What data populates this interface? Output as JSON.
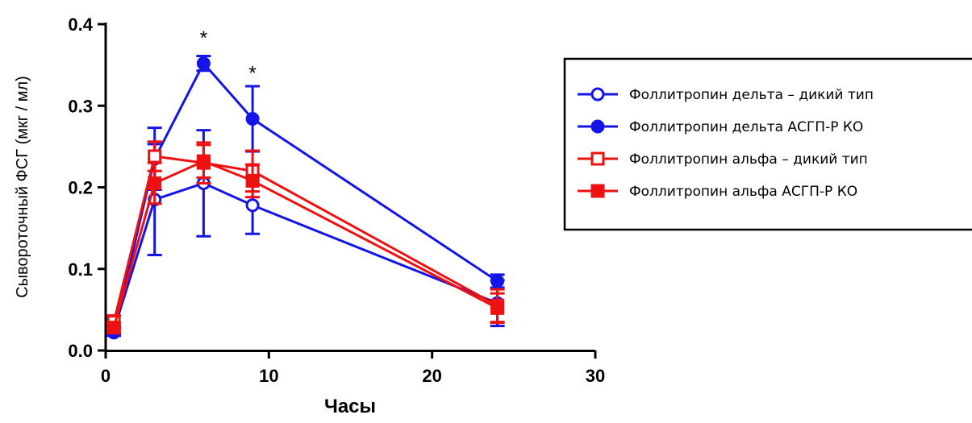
{
  "chart_data": {
    "type": "line",
    "title": "",
    "xlabel": "Часы",
    "ylabel": "Сывороточный ФСГ (мкг / мл)",
    "xlim": [
      0,
      30
    ],
    "ylim": [
      0,
      0.4
    ],
    "xticks": [
      0,
      10,
      20,
      30
    ],
    "yticks": [
      0.0,
      0.1,
      0.2,
      0.3,
      0.4
    ],
    "xtick_labels": [
      "0",
      "10",
      "20",
      "30"
    ],
    "ytick_labels": [
      "0.0",
      "0.1",
      "0.2",
      "0.3",
      "0.4"
    ],
    "grid": false,
    "legend_position": "right",
    "series": [
      {
        "name": "Фоллитропин дельта – дикий тип",
        "color": "#1414e6",
        "marker": "circle-open",
        "x": [
          0.5,
          3,
          6,
          9,
          24
        ],
        "y": [
          0.025,
          0.185,
          0.205,
          0.178,
          0.058
        ],
        "err": [
          0.005,
          0.068,
          0.065,
          0.035,
          0.028
        ]
      },
      {
        "name": "Фоллитропин дельта АСГП-Р КО",
        "color": "#1414e6",
        "marker": "circle-filled",
        "x": [
          0.5,
          3,
          6,
          9,
          24
        ],
        "y": [
          0.022,
          0.235,
          0.352,
          0.284,
          0.085
        ],
        "err": [
          0.004,
          0.038,
          0.009,
          0.04,
          0.008
        ]
      },
      {
        "name": "Фоллитропин альфа – дикий тип",
        "color": "#ee1111",
        "marker": "square-open",
        "x": [
          0.5,
          3,
          6,
          9,
          24
        ],
        "y": [
          0.035,
          0.238,
          0.23,
          0.22,
          0.055
        ],
        "err": [
          0.008,
          0.018,
          0.025,
          0.025,
          0.02
        ]
      },
      {
        "name": "Фоллитропин альфа АСГП-Р КО",
        "color": "#ee1111",
        "marker": "square-filled",
        "x": [
          0.5,
          3,
          6,
          9,
          24
        ],
        "y": [
          0.028,
          0.205,
          0.232,
          0.208,
          0.052
        ],
        "err": [
          0.006,
          0.025,
          0.02,
          0.02,
          0.018
        ]
      }
    ],
    "annotations": [
      {
        "text": "*",
        "x": 6,
        "y": 0.385
      },
      {
        "text": "*",
        "x": 9,
        "y": 0.342
      }
    ]
  }
}
